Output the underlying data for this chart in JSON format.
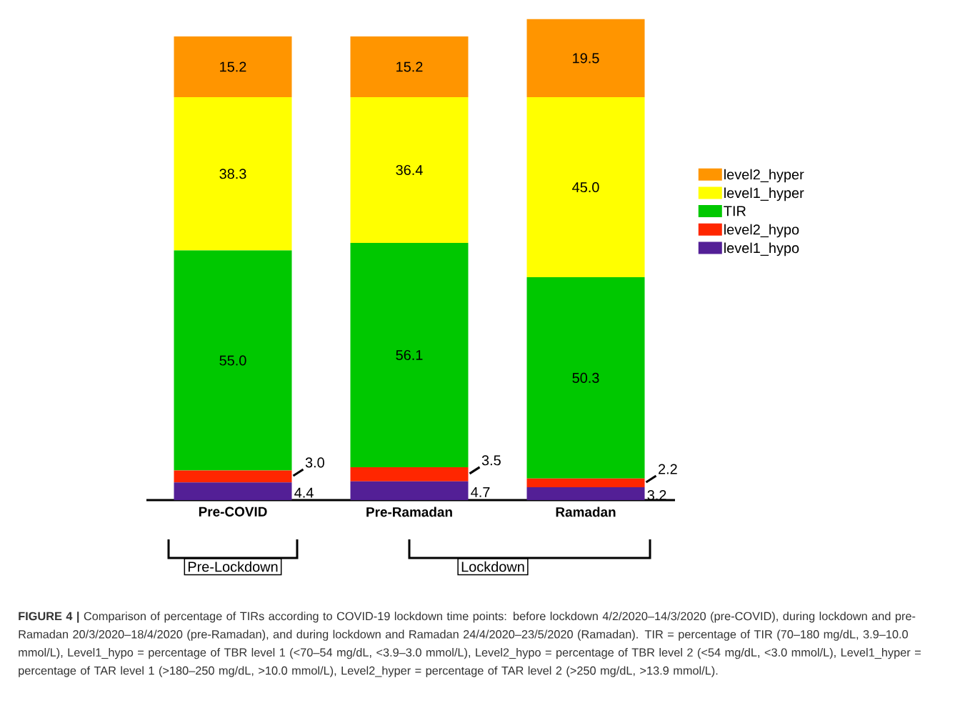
{
  "chart_data": {
    "type": "bar",
    "stacked": true,
    "categories": [
      "Pre-COVID",
      "Pre-Ramadan",
      "Ramadan"
    ],
    "series": [
      {
        "name": "level1_hypo",
        "color": "#531f96",
        "values": [
          4.4,
          4.7,
          3.2
        ],
        "value_labels": [
          "4.4",
          "4.7",
          "3.2"
        ]
      },
      {
        "name": "level2_hypo",
        "color": "#ff2600",
        "values": [
          3.0,
          3.5,
          2.2
        ],
        "value_labels": [
          "3.0",
          "3.5",
          "2.2"
        ]
      },
      {
        "name": "TIR",
        "color": "#00c800",
        "values": [
          55.0,
          56.1,
          50.3
        ],
        "value_labels": [
          "55.0",
          "56.1",
          "50.3"
        ]
      },
      {
        "name": "level1_hyper",
        "color": "#ffff00",
        "values": [
          38.3,
          36.4,
          45.0
        ],
        "value_labels": [
          "38.3",
          "36.4",
          "45.0"
        ]
      },
      {
        "name": "level2_hyper",
        "color": "#ff9500",
        "values": [
          15.2,
          15.2,
          19.5
        ],
        "value_labels": [
          "15.2",
          "15.2",
          "19.5"
        ]
      }
    ],
    "legend": "right",
    "annotations": [
      "Pre-Lockdown",
      "Lockdown",
      "**FIGURE 4 |** Comparison of percentage of TIRs according to COVID-19 lockdown time points: before lockdown 4/2/2020–14/3/2020 (pre-COVID), during lockdown and pre-Ramadan 20/3/2020–18/4/2020 (pre-Ramadan), and during lockdown and Ramadan 24/4/2020–23/5/2020 (Ramadan). TIR = percentage of TIR (70–180 mg/dL, 3.9–10.0 mmol/L), Level1_hypo = percentage of TBR level 1 (<70–54 mg/dL, <3.9–3.0 mmol/L), Level2_hypo = percentage of TBR level 2 (<54 mg/dL, <3.0 mmol/L), Level1_hyper = percentage of TAR level 1 (>180–250 mg/dL, >10.0 mmol/L), Level2_hyper = percentage of TAR level 2 (>250 mg/dL, >13.9 mmol/L)."
    ]
  }
}
